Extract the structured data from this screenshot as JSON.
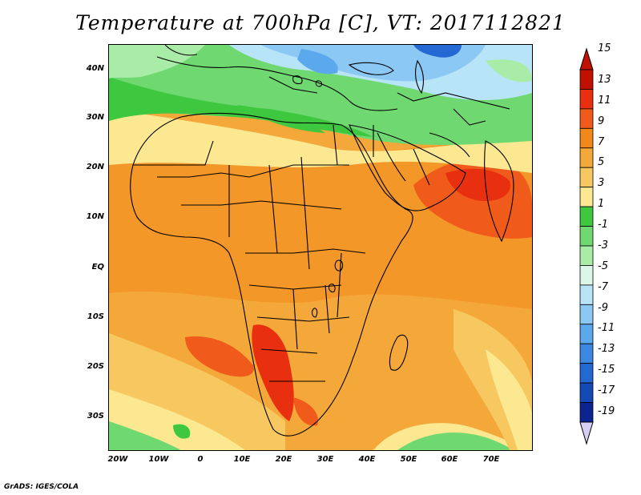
{
  "title": "Temperature at 700hPa [C], VT: 2017112821",
  "credit": "GrADS: IGES/COLA",
  "y_axis_ticks": [
    "40N",
    "30N",
    "20N",
    "10N",
    "EQ",
    "10S",
    "20S",
    "30S"
  ],
  "x_axis_ticks": [
    "20W",
    "10W",
    "0",
    "10E",
    "20E",
    "30E",
    "40E",
    "50E",
    "60E",
    "70E"
  ],
  "colorbar": {
    "labels": [
      "15",
      "13",
      "11",
      "9",
      "7",
      "5",
      "3",
      "1",
      "-1",
      "-3",
      "-5",
      "-7",
      "-9",
      "-11",
      "-13",
      "-15",
      "-17",
      "-19"
    ],
    "colors": [
      "#c01000",
      "#e83010",
      "#f05a1a",
      "#f0881a",
      "#f4a83a",
      "#f8c860",
      "#fce890",
      "#3ec840",
      "#70d870",
      "#a8eca8",
      "#dcf6e8",
      "#b8e4f8",
      "#8cc8f4",
      "#5ca8ec",
      "#3c88e0",
      "#2468d4",
      "#1448b4",
      "#0c2490"
    ],
    "top_triangle_color": "#c01000",
    "bottom_triangle_color": "#d8d0f4"
  },
  "field_colors": {
    "cold_blue": "#5ca8ec",
    "light_blue": "#b8e4f8",
    "green_mid": "#70d870",
    "green_dark": "#3ec840",
    "pale_yellow": "#fce890",
    "yellow": "#f8c860",
    "light_orange": "#f4a83a",
    "orange": "#f0881a",
    "red_orange": "#e83010"
  }
}
